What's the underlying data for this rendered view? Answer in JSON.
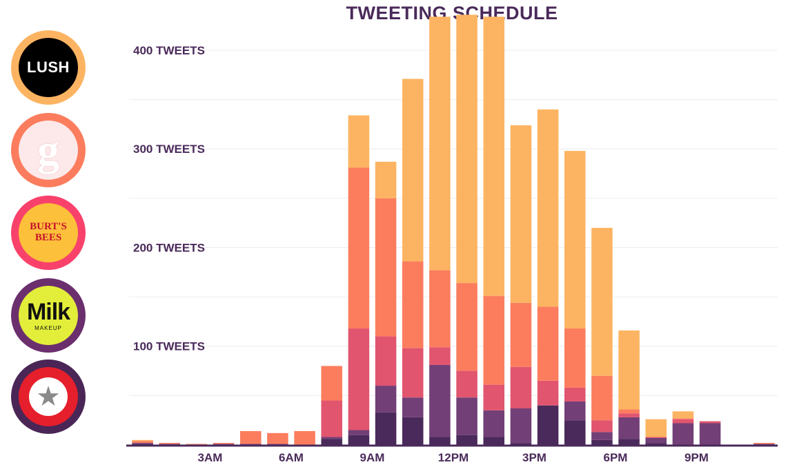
{
  "title": "TWEETING SCHEDULE",
  "colors": {
    "lush": "#fdb462",
    "glossier": "#fb7d5e",
    "burts_bees": "#e1556f",
    "milk_makeup": "#723f77",
    "first_aid_beauty": "#4a2a5a",
    "axis_text": "#4a2a5a",
    "grid": "#ececec"
  },
  "logos": {
    "lush": {
      "text": "LUSH"
    },
    "glossier": {
      "text": "g"
    },
    "burts_bees": {
      "line1": "BURT'S",
      "line2": "BEES"
    },
    "milk_makeup": {
      "text": "Milk",
      "sub": "MAKEUP"
    },
    "first_aid_beauty": {
      "icon": "star-icon"
    }
  },
  "chart_data": {
    "type": "bar",
    "stacked": true,
    "title": "TWEETING SCHEDULE",
    "ylim": [
      0,
      430
    ],
    "y_ticks": [
      100,
      200,
      300,
      400
    ],
    "y_tick_labels": [
      "100 TWEETS",
      "200 TWEETS",
      "300 TWEETS",
      "400 TWEETS"
    ],
    "x_tick_labels": [
      "3AM",
      "6AM",
      "9AM",
      "12PM",
      "3PM",
      "6PM",
      "9PM"
    ],
    "x_tick_hours": [
      3,
      6,
      9,
      12,
      15,
      18,
      21
    ],
    "grid": true,
    "hours": [
      0,
      1,
      2,
      3,
      4,
      5,
      6,
      7,
      8,
      9,
      10,
      11,
      12,
      13,
      14,
      15,
      16,
      17,
      18,
      19,
      20,
      21,
      22,
      23
    ],
    "series": [
      {
        "key": "first_aid_beauty",
        "values": [
          1,
          0,
          0,
          0,
          0,
          0,
          0,
          6,
          10,
          33,
          28,
          8,
          10,
          8,
          2,
          40,
          25,
          5,
          6,
          2,
          0,
          0,
          0,
          0
        ]
      },
      {
        "key": "milk_makeup",
        "values": [
          1,
          1,
          0,
          1,
          1,
          1,
          0,
          2,
          5,
          27,
          20,
          73,
          38,
          27,
          35,
          0,
          19,
          8,
          22,
          5,
          22,
          22,
          0,
          1
        ]
      },
      {
        "key": "burts_bees",
        "values": [
          0,
          0,
          0,
          0,
          0,
          0,
          0,
          37,
          103,
          50,
          50,
          18,
          27,
          26,
          42,
          25,
          14,
          12,
          4,
          1,
          4,
          2,
          0,
          0
        ]
      },
      {
        "key": "glossier",
        "values": [
          2,
          1,
          1,
          1,
          13,
          11,
          14,
          35,
          163,
          140,
          88,
          78,
          89,
          90,
          65,
          75,
          60,
          45,
          4,
          0,
          1,
          0,
          0,
          1
        ]
      },
      {
        "key": "lush",
        "values": [
          1,
          0,
          0,
          0,
          0,
          0,
          0,
          0,
          53,
          37,
          185,
          257,
          272,
          283,
          180,
          200,
          180,
          150,
          80,
          18,
          7,
          0,
          0,
          0
        ]
      }
    ]
  }
}
